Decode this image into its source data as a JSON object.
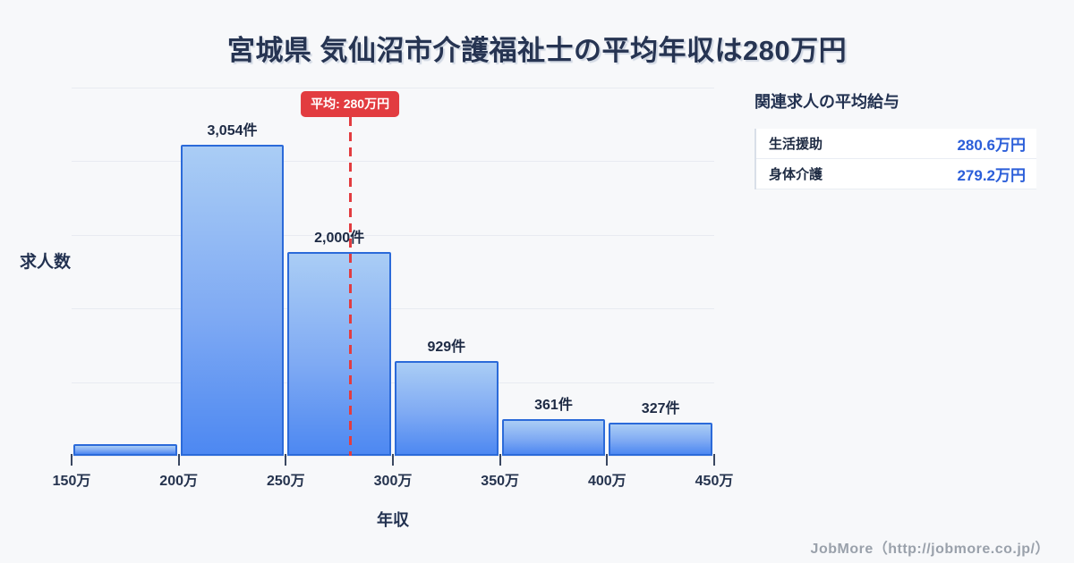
{
  "title": "宮城県 気仙沼市介護福祉士の平均年収は280万円",
  "chart_data": {
    "type": "bar",
    "subtype": "histogram",
    "title": "宮城県 気仙沼市介護福祉士の平均年収は280万円",
    "xlabel": "年収",
    "ylabel": "求人数",
    "x_tick_labels": [
      "150万",
      "200万",
      "250万",
      "300万",
      "350万",
      "400万",
      "450万"
    ],
    "x_range_man_yen": [
      150,
      450
    ],
    "bin_width_man_yen": 50,
    "series": [
      {
        "name": "求人数",
        "values": [
          110,
          3054,
          2000,
          929,
          361,
          327
        ]
      }
    ],
    "bar_labels": [
      "",
      "3,054件",
      "2,000件",
      "929件",
      "361件",
      "327件"
    ],
    "first_value_estimated_no_label": true,
    "average_line": {
      "value_man_yen": 280,
      "label": "平均: 280万円",
      "color": "#e23c40",
      "style": "dashed-vertical"
    },
    "ylim": [
      0,
      3616
    ],
    "grid": true,
    "gridline_count": 5,
    "legend_position": "none"
  },
  "side_panel": {
    "title": "関連求人の平均給与",
    "rows": [
      {
        "label": "生活援助",
        "value": "280.6万円"
      },
      {
        "label": "身体介護",
        "value": "279.2万円"
      }
    ]
  },
  "footer": {
    "credit": "JobMore（http://jobmore.co.jp/）"
  },
  "colors": {
    "background": "#f7f8fa",
    "title_text": "#263452",
    "bar_border": "#2b6ad9",
    "bar_gradient_top": "#aacdf5",
    "bar_gradient_bottom": "#4d88f2",
    "average_red": "#e23c40",
    "panel_value_blue": "#2b5ed9",
    "gridline": "#e8ebf1",
    "footer_gray": "#9aa1ab"
  }
}
